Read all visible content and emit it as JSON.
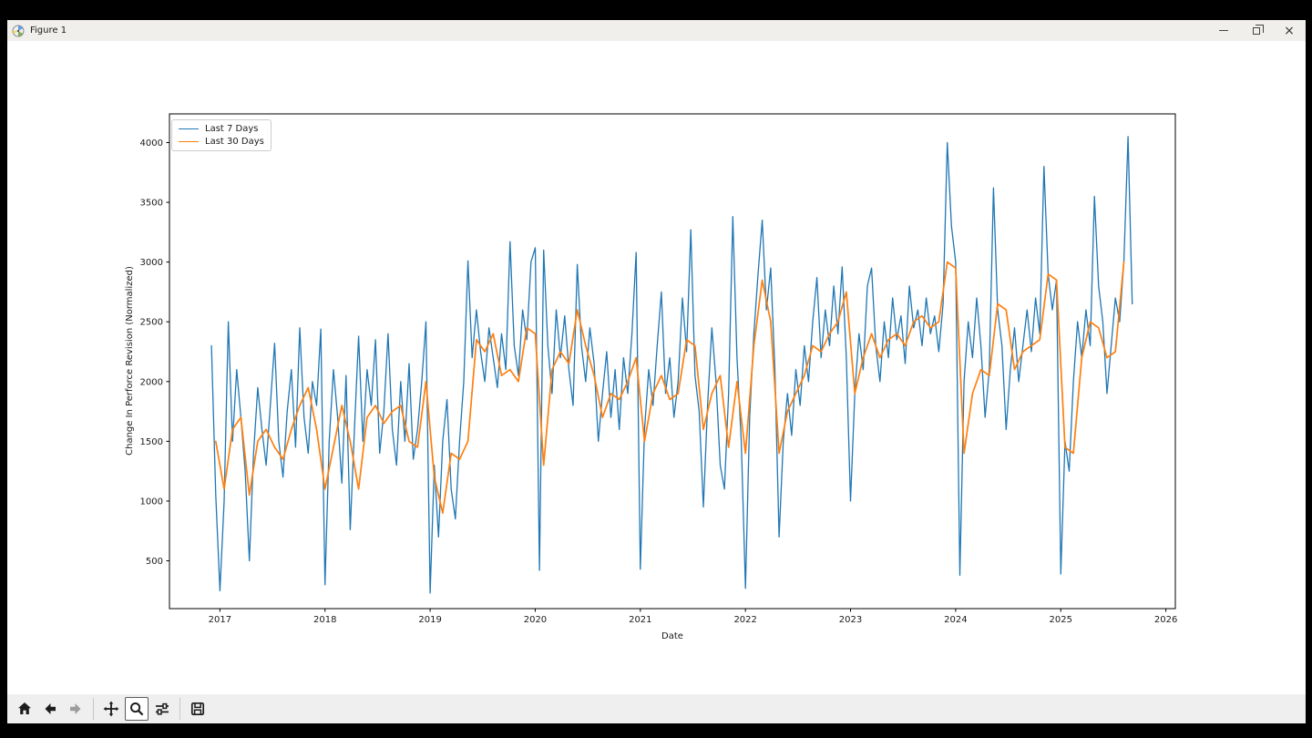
{
  "window": {
    "title": "Figure 1",
    "app_icon": "matplotlib-logo-icon",
    "controls": [
      {
        "name": "minimize",
        "icon": "minimize-icon"
      },
      {
        "name": "restore",
        "icon": "restore-icon"
      },
      {
        "name": "close",
        "icon": "close-icon",
        "glyph": "×"
      }
    ]
  },
  "toolbar": {
    "items": [
      {
        "name": "home",
        "icon": "home-icon"
      },
      {
        "name": "back",
        "icon": "back-arrow-icon"
      },
      {
        "name": "forward",
        "icon": "forward-arrow-icon",
        "disabled": true
      },
      {
        "sep": true
      },
      {
        "name": "pan",
        "icon": "pan-arrows-icon"
      },
      {
        "name": "zoom",
        "icon": "magnifier-icon",
        "active": true
      },
      {
        "name": "configure-subplots",
        "icon": "sliders-icon"
      },
      {
        "sep": true
      },
      {
        "name": "save",
        "icon": "floppy-disk-icon"
      }
    ]
  },
  "chart_data": {
    "type": "line",
    "title": "",
    "xlabel": "Date",
    "ylabel": "Change In Perforce Revision (Normalized)",
    "xlim": [
      2016.52,
      2026.09
    ],
    "ylim": [
      100,
      4240
    ],
    "xticks": [
      2017,
      2018,
      2019,
      2020,
      2021,
      2022,
      2023,
      2024,
      2025,
      2026
    ],
    "yticks": [
      500,
      1000,
      1500,
      2000,
      2500,
      3000,
      3500,
      4000
    ],
    "grid": false,
    "legend_position": "upper left",
    "series": [
      {
        "name": "Last 7 Days",
        "color": "#1f77b4",
        "x_start": 2016.92,
        "x_step": 0.04,
        "values": [
          2300,
          1050,
          250,
          1000,
          2500,
          1500,
          2100,
          1700,
          1250,
          500,
          1400,
          1950,
          1600,
          1300,
          1800,
          2320,
          1500,
          1200,
          1750,
          2100,
          1450,
          2450,
          1700,
          1400,
          2000,
          1800,
          2440,
          300,
          1500,
          2100,
          1700,
          1150,
          2050,
          760,
          1600,
          2380,
          1500,
          2100,
          1800,
          2350,
          1400,
          1750,
          2400,
          1600,
          1300,
          2000,
          1500,
          2150,
          1350,
          1600,
          2000,
          2500,
          230,
          1300,
          700,
          1500,
          1850,
          1100,
          850,
          1500,
          2000,
          3010,
          2200,
          2600,
          2250,
          2000,
          2450,
          2200,
          1950,
          2400,
          2100,
          3170,
          2300,
          2050,
          2600,
          2350,
          3000,
          3120,
          420,
          3100,
          2300,
          1900,
          2600,
          2200,
          2550,
          2100,
          1800,
          2980,
          2300,
          2000,
          2450,
          2150,
          1500,
          1900,
          2250,
          1700,
          2100,
          1600,
          2200,
          1900,
          2400,
          3080,
          430,
          1600,
          2100,
          1800,
          2300,
          2750,
          1900,
          2200,
          1700,
          2000,
          2700,
          2250,
          3270,
          2050,
          1750,
          950,
          1800,
          2450,
          2000,
          1300,
          1100,
          1900,
          3380,
          2200,
          1500,
          270,
          1700,
          2400,
          2900,
          3350,
          2600,
          2950,
          2100,
          700,
          1500,
          1900,
          1550,
          2100,
          1800,
          2300,
          2000,
          2500,
          2870,
          2200,
          2600,
          2300,
          2800,
          2400,
          2960,
          2200,
          1000,
          1900,
          2400,
          2100,
          2800,
          2950,
          2300,
          2000,
          2500,
          2200,
          2700,
          2350,
          2550,
          2150,
          2800,
          2450,
          2600,
          2300,
          2700,
          2400,
          2550,
          2250,
          2650,
          4000,
          3300,
          3000,
          380,
          2000,
          2500,
          2200,
          2700,
          2300,
          1700,
          2100,
          3620,
          2600,
          2300,
          1600,
          2100,
          2450,
          2000,
          2300,
          2600,
          2250,
          2700,
          2400,
          3800,
          2900,
          2600,
          2850,
          390,
          1500,
          1250,
          2000,
          2500,
          2200,
          2600,
          2300,
          3550,
          2800,
          2500,
          1900,
          2300,
          2700,
          2500,
          3000,
          4050,
          2650
        ]
      },
      {
        "name": "Last 30 Days",
        "color": "#ff7f0e",
        "x_start": 2016.96,
        "x_step": 0.08,
        "values": [
          1500,
          1100,
          1600,
          1700,
          1050,
          1500,
          1600,
          1450,
          1350,
          1600,
          1800,
          1950,
          1600,
          1100,
          1450,
          1800,
          1500,
          1100,
          1700,
          1800,
          1650,
          1750,
          1800,
          1500,
          1450,
          2000,
          1200,
          900,
          1400,
          1350,
          1500,
          2350,
          2250,
          2400,
          2050,
          2100,
          2000,
          2450,
          2400,
          1300,
          2100,
          2250,
          2150,
          2600,
          2300,
          2050,
          1700,
          1900,
          1850,
          2000,
          2200,
          1500,
          1900,
          2050,
          1850,
          1900,
          2350,
          2300,
          1600,
          1900,
          2050,
          1450,
          2000,
          1400,
          2300,
          2850,
          2500,
          1400,
          1750,
          1900,
          2050,
          2300,
          2250,
          2400,
          2500,
          2750,
          1900,
          2200,
          2400,
          2200,
          2350,
          2400,
          2300,
          2500,
          2550,
          2450,
          2500,
          3000,
          2950,
          1400,
          1900,
          2100,
          2050,
          2650,
          2600,
          2100,
          2250,
          2300,
          2350,
          2900,
          2850,
          1450,
          1400,
          2200,
          2500,
          2450,
          2200,
          2250,
          3000
        ]
      }
    ]
  }
}
